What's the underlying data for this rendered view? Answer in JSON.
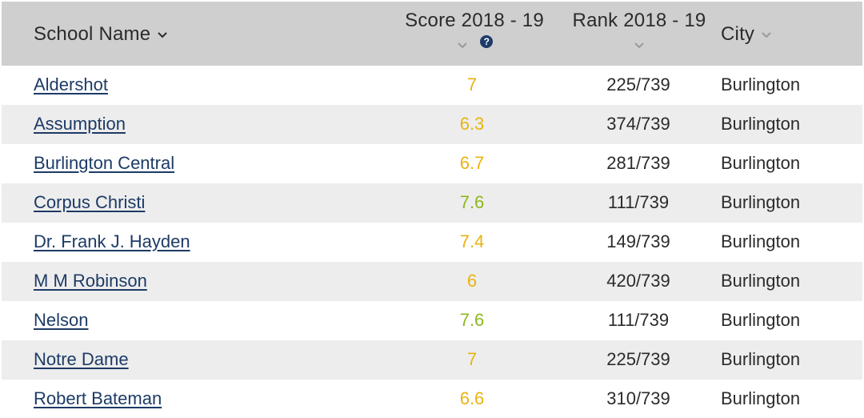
{
  "header": {
    "school_name": "School Name",
    "score_label": "Score 2018 - 19",
    "score_help": "?",
    "rank_label": "Rank 2018 - 19",
    "city": "City"
  },
  "colors": {
    "header_bg": "#cfcfd0",
    "link": "#1d3b66",
    "score_yellow": "#e8b410",
    "score_green": "#8cb81c"
  },
  "rows": [
    {
      "name": "Aldershot",
      "score": "7",
      "score_color": "#e8b410",
      "rank": "225/739",
      "city": "Burlington"
    },
    {
      "name": "Assumption",
      "score": "6.3",
      "score_color": "#e8b410",
      "rank": "374/739",
      "city": "Burlington"
    },
    {
      "name": "Burlington Central",
      "score": "6.7",
      "score_color": "#e8b410",
      "rank": "281/739",
      "city": "Burlington"
    },
    {
      "name": "Corpus Christi",
      "score": "7.6",
      "score_color": "#8cb81c",
      "rank": "111/739",
      "city": "Burlington"
    },
    {
      "name": "Dr. Frank J. Hayden",
      "score": "7.4",
      "score_color": "#e8b410",
      "rank": "149/739",
      "city": "Burlington"
    },
    {
      "name": "M M Robinson",
      "score": "6",
      "score_color": "#e8b410",
      "rank": "420/739",
      "city": "Burlington"
    },
    {
      "name": "Nelson",
      "score": "7.6",
      "score_color": "#8cb81c",
      "rank": "111/739",
      "city": "Burlington"
    },
    {
      "name": "Notre Dame",
      "score": "7",
      "score_color": "#e8b410",
      "rank": "225/739",
      "city": "Burlington"
    },
    {
      "name": "Robert Bateman",
      "score": "6.6",
      "score_color": "#e8b410",
      "rank": "310/739",
      "city": "Burlington"
    }
  ]
}
